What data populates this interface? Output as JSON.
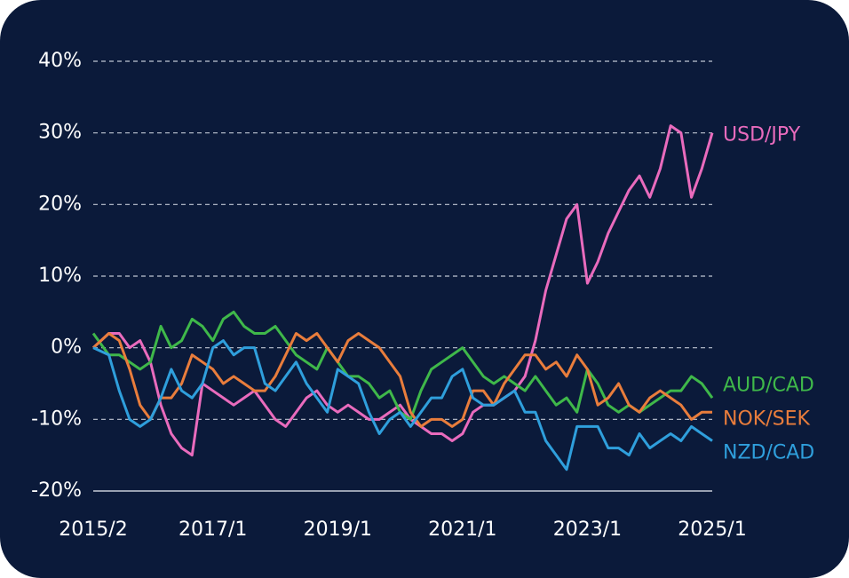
{
  "chart_data": {
    "type": "line",
    "x": [
      "2015/2",
      "2015/5",
      "2015/7",
      "2015/9",
      "2015/11",
      "2016/1",
      "2016/3",
      "2016/5",
      "2016/7",
      "2016/9",
      "2016/11",
      "2017/1",
      "2017/3",
      "2017/5",
      "2017/7",
      "2017/9",
      "2017/11",
      "2018/1",
      "2018/3",
      "2018/5",
      "2018/7",
      "2018/9",
      "2018/11",
      "2019/1",
      "2019/3",
      "2019/5",
      "2019/7",
      "2019/9",
      "2019/11",
      "2020/1",
      "2020/3",
      "2020/5",
      "2020/7",
      "2020/9",
      "2020/11",
      "2021/1",
      "2021/3",
      "2021/5",
      "2021/7",
      "2021/9",
      "2021/11",
      "2022/1",
      "2022/3",
      "2022/5",
      "2022/7",
      "2022/9",
      "2022/11",
      "2023/1",
      "2023/3",
      "2023/5",
      "2023/7",
      "2023/9",
      "2023/11",
      "2024/1",
      "2024/3",
      "2024/5",
      "2024/7",
      "2024/9",
      "2024/11",
      "2025/1"
    ],
    "series": [
      {
        "name": "USD/JPY",
        "color": "#e96bbd",
        "values": [
          0,
          2,
          2,
          0,
          1,
          -2,
          -8,
          -12,
          -14,
          -15,
          -5,
          -6,
          -7,
          -8,
          -7,
          -6,
          -8,
          -10,
          -11,
          -9,
          -7,
          -6,
          -8,
          -9,
          -8,
          -9,
          -10,
          -10,
          -9,
          -8,
          -10,
          -11,
          -12,
          -12,
          -13,
          -12,
          -9,
          -8,
          -8,
          -7,
          -6,
          -4,
          1,
          8,
          13,
          18,
          20,
          9,
          12,
          16,
          19,
          22,
          24,
          21,
          25,
          31,
          30,
          21,
          25,
          30
        ]
      },
      {
        "name": "AUD/CAD",
        "color": "#3fb84a",
        "values": [
          2,
          -1,
          -1,
          -2,
          -3,
          -2,
          3,
          0,
          1,
          4,
          3,
          1,
          4,
          5,
          3,
          2,
          2,
          3,
          1,
          -1,
          -2,
          -3,
          0,
          -2,
          -4,
          -4,
          -5,
          -7,
          -6,
          -9,
          -10,
          -6,
          -3,
          -2,
          -1,
          0,
          -2,
          -4,
          -5,
          -4,
          -5,
          -6,
          -4,
          -6,
          -8,
          -7,
          -9,
          -3,
          -5,
          -8,
          -9,
          -8,
          -9,
          -8,
          -7,
          -6,
          -6,
          -4,
          -5,
          -7
        ]
      },
      {
        "name": "NOK/SEK",
        "color": "#e97d3c",
        "values": [
          0,
          2,
          1,
          -3,
          -8,
          -10,
          -7,
          -7,
          -5,
          -1,
          -2,
          -3,
          -5,
          -4,
          -5,
          -6,
          -6,
          -4,
          -1,
          2,
          1,
          2,
          0,
          -2,
          1,
          2,
          1,
          0,
          -2,
          -4,
          -9,
          -11,
          -10,
          -10,
          -11,
          -10,
          -6,
          -6,
          -8,
          -5,
          -3,
          -1,
          -1,
          -3,
          -2,
          -4,
          -1,
          -3,
          -8,
          -7,
          -5,
          -8,
          -9,
          -7,
          -6,
          -7,
          -8,
          -10,
          -9,
          -9
        ]
      },
      {
        "name": "NZD/CAD",
        "color": "#2f9fdc",
        "values": [
          0,
          -1,
          -6,
          -10,
          -11,
          -10,
          -7,
          -3,
          -6,
          -7,
          -5,
          0,
          1,
          -1,
          0,
          0,
          -5,
          -6,
          -4,
          -2,
          -5,
          -7,
          -9,
          -3,
          -4,
          -5,
          -9,
          -12,
          -10,
          -9,
          -11,
          -9,
          -7,
          -7,
          -4,
          -3,
          -7,
          -8,
          -8,
          -7,
          -6,
          -9,
          -9,
          -13,
          -15,
          -17,
          -11,
          -11,
          -11,
          -14,
          -14,
          -15,
          -12,
          -14,
          -13,
          -12,
          -13,
          -11,
          -12,
          -13
        ]
      }
    ],
    "ylim": [
      -20,
      40
    ],
    "yticks": [
      {
        "value": -20,
        "label": "-20%"
      },
      {
        "value": -10,
        "label": "-10%"
      },
      {
        "value": 0,
        "label": "0%"
      },
      {
        "value": 10,
        "label": "10%"
      },
      {
        "value": 20,
        "label": "20%"
      },
      {
        "value": 30,
        "label": "30%"
      },
      {
        "value": 40,
        "label": "40%"
      }
    ],
    "xticks": [
      "2015/2",
      "2017/1",
      "2019/1",
      "2021/1",
      "2023/1",
      "2025/1"
    ],
    "grid": true
  }
}
